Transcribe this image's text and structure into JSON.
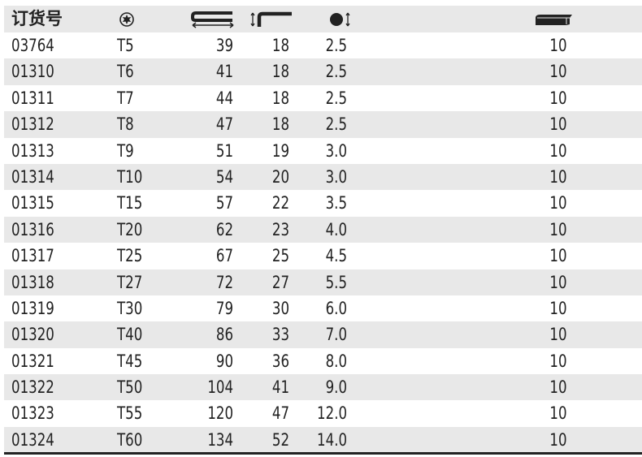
{
  "header": {
    "order_no_label": "订货号",
    "icons": [
      "torx-size-icon",
      "length-icon",
      "short-arm-length-icon",
      "diameter-icon",
      "pack-quantity-icon"
    ]
  },
  "rows": [
    [
      "03764",
      "T5",
      "39",
      "18",
      "2.5",
      "10"
    ],
    [
      "01310",
      "T6",
      "41",
      "18",
      "2.5",
      "10"
    ],
    [
      "01311",
      "T7",
      "44",
      "18",
      "2.5",
      "10"
    ],
    [
      "01312",
      "T8",
      "47",
      "18",
      "2.5",
      "10"
    ],
    [
      "01313",
      "T9",
      "51",
      "19",
      "3.0",
      "10"
    ],
    [
      "01314",
      "T10",
      "54",
      "20",
      "3.0",
      "10"
    ],
    [
      "01315",
      "T15",
      "57",
      "22",
      "3.5",
      "10"
    ],
    [
      "01316",
      "T20",
      "62",
      "23",
      "4.0",
      "10"
    ],
    [
      "01317",
      "T25",
      "67",
      "25",
      "4.5",
      "10"
    ],
    [
      "01318",
      "T27",
      "72",
      "27",
      "5.5",
      "10"
    ],
    [
      "01319",
      "T30",
      "79",
      "30",
      "6.0",
      "10"
    ],
    [
      "01320",
      "T40",
      "86",
      "33",
      "7.0",
      "10"
    ],
    [
      "01321",
      "T45",
      "90",
      "36",
      "8.0",
      "10"
    ],
    [
      "01322",
      "T50",
      "104",
      "41",
      "9.0",
      "10"
    ],
    [
      "01323",
      "T55",
      "120",
      "47",
      "12.0",
      "10"
    ],
    [
      "01324",
      "T60",
      "134",
      "52",
      "14.0",
      "10"
    ]
  ],
  "colors": {
    "stripe": "#e8e8e8",
    "text": "#222222"
  }
}
